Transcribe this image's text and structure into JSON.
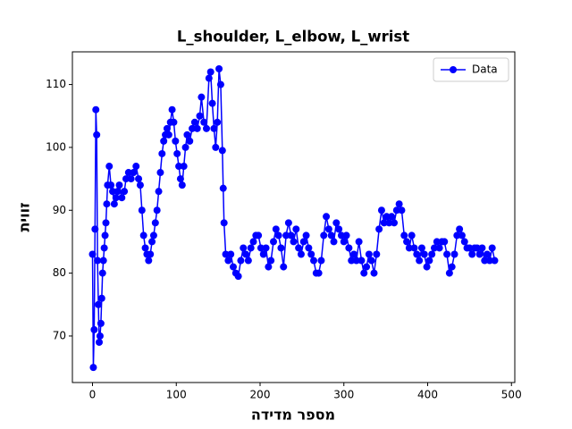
{
  "chart_data": {
    "type": "line",
    "title": "L_shoulder, L_elbow, L_wrist",
    "xlabel": "מספר מדידה",
    "ylabel": "זווית",
    "x": [
      0,
      1,
      2,
      3,
      4,
      5,
      6,
      7,
      8,
      9,
      10,
      11,
      12,
      13,
      14,
      15,
      16,
      17,
      18,
      20,
      22,
      24,
      26,
      28,
      30,
      32,
      35,
      38,
      40,
      43,
      46,
      49,
      52,
      55,
      57,
      59,
      61,
      63,
      65,
      67,
      69,
      71,
      73,
      75,
      77,
      79,
      81,
      83,
      85,
      87,
      89,
      91,
      93,
      95,
      97,
      99,
      101,
      103,
      105,
      107,
      109,
      111,
      113,
      116,
      119,
      122,
      125,
      128,
      130,
      133,
      136,
      139,
      141,
      143,
      145,
      147,
      149,
      151,
      153,
      155,
      156,
      157,
      159,
      162,
      165,
      168,
      171,
      174,
      177,
      180,
      183,
      186,
      189,
      192,
      195,
      198,
      201,
      204,
      207,
      210,
      213,
      216,
      219,
      222,
      225,
      228,
      231,
      234,
      237,
      240,
      243,
      246,
      249,
      252,
      255,
      258,
      261,
      264,
      267,
      270,
      273,
      276,
      279,
      282,
      285,
      288,
      291,
      294,
      297,
      300,
      303,
      306,
      309,
      312,
      315,
      318,
      321,
      324,
      327,
      330,
      333,
      336,
      339,
      342,
      345,
      348,
      351,
      354,
      357,
      360,
      363,
      366,
      369,
      372,
      375,
      378,
      381,
      384,
      387,
      390,
      393,
      396,
      399,
      402,
      405,
      408,
      411,
      414,
      417,
      420,
      423,
      426,
      429,
      432,
      435,
      438,
      441,
      444,
      447,
      450,
      453,
      456,
      459,
      462,
      465,
      468,
      471,
      474,
      477,
      480
    ],
    "series": [
      {
        "name": "Data",
        "color": "#0000ff",
        "values": [
          83,
          65,
          71,
          87,
          106,
          102,
          82,
          75,
          69,
          70,
          72,
          76,
          80,
          82,
          84,
          86,
          88,
          91,
          94,
          97,
          94,
          93,
          91,
          92,
          93,
          94,
          92,
          93,
          95,
          96,
          95,
          96,
          97,
          95,
          94,
          90,
          86,
          84,
          83,
          82,
          83,
          85,
          86,
          88,
          90,
          93,
          96,
          99,
          101,
          102,
          103,
          102,
          104,
          106,
          104,
          101,
          99,
          97,
          95,
          94,
          97,
          100,
          102,
          101,
          103,
          104,
          103,
          105,
          108,
          104,
          103,
          111,
          112,
          107,
          103,
          100,
          104,
          112.5,
          110,
          99.5,
          93.5,
          88,
          83,
          82,
          83,
          81,
          80,
          79.5,
          82,
          84,
          83,
          82,
          84,
          85,
          86,
          86,
          84,
          83,
          84,
          81,
          82,
          85,
          87,
          86,
          84,
          81,
          86,
          88,
          86,
          85,
          87,
          84,
          83,
          85,
          86,
          84,
          83,
          82,
          80,
          80,
          82,
          86,
          89,
          87,
          86,
          85,
          88,
          87,
          86,
          85,
          86,
          84,
          82,
          83,
          82,
          85,
          82,
          80,
          81,
          83,
          82,
          80,
          83,
          87,
          90,
          88,
          89,
          88,
          89,
          88,
          90,
          91,
          90,
          86,
          85,
          84,
          86,
          84,
          83,
          82,
          84,
          83,
          81,
          82,
          83,
          84,
          85,
          84,
          85,
          85,
          83,
          80,
          81,
          83,
          86,
          87,
          86,
          85,
          84,
          84,
          83,
          84,
          84,
          83,
          84,
          82,
          83,
          82,
          84,
          82
        ]
      }
    ],
    "xlim": [
      -24,
      504
    ],
    "ylim": [
      62.6,
      115.2
    ],
    "xticks": [
      0,
      100,
      200,
      300,
      400,
      500
    ],
    "yticks": [
      70,
      80,
      90,
      100,
      110
    ],
    "legend": "upper right"
  }
}
